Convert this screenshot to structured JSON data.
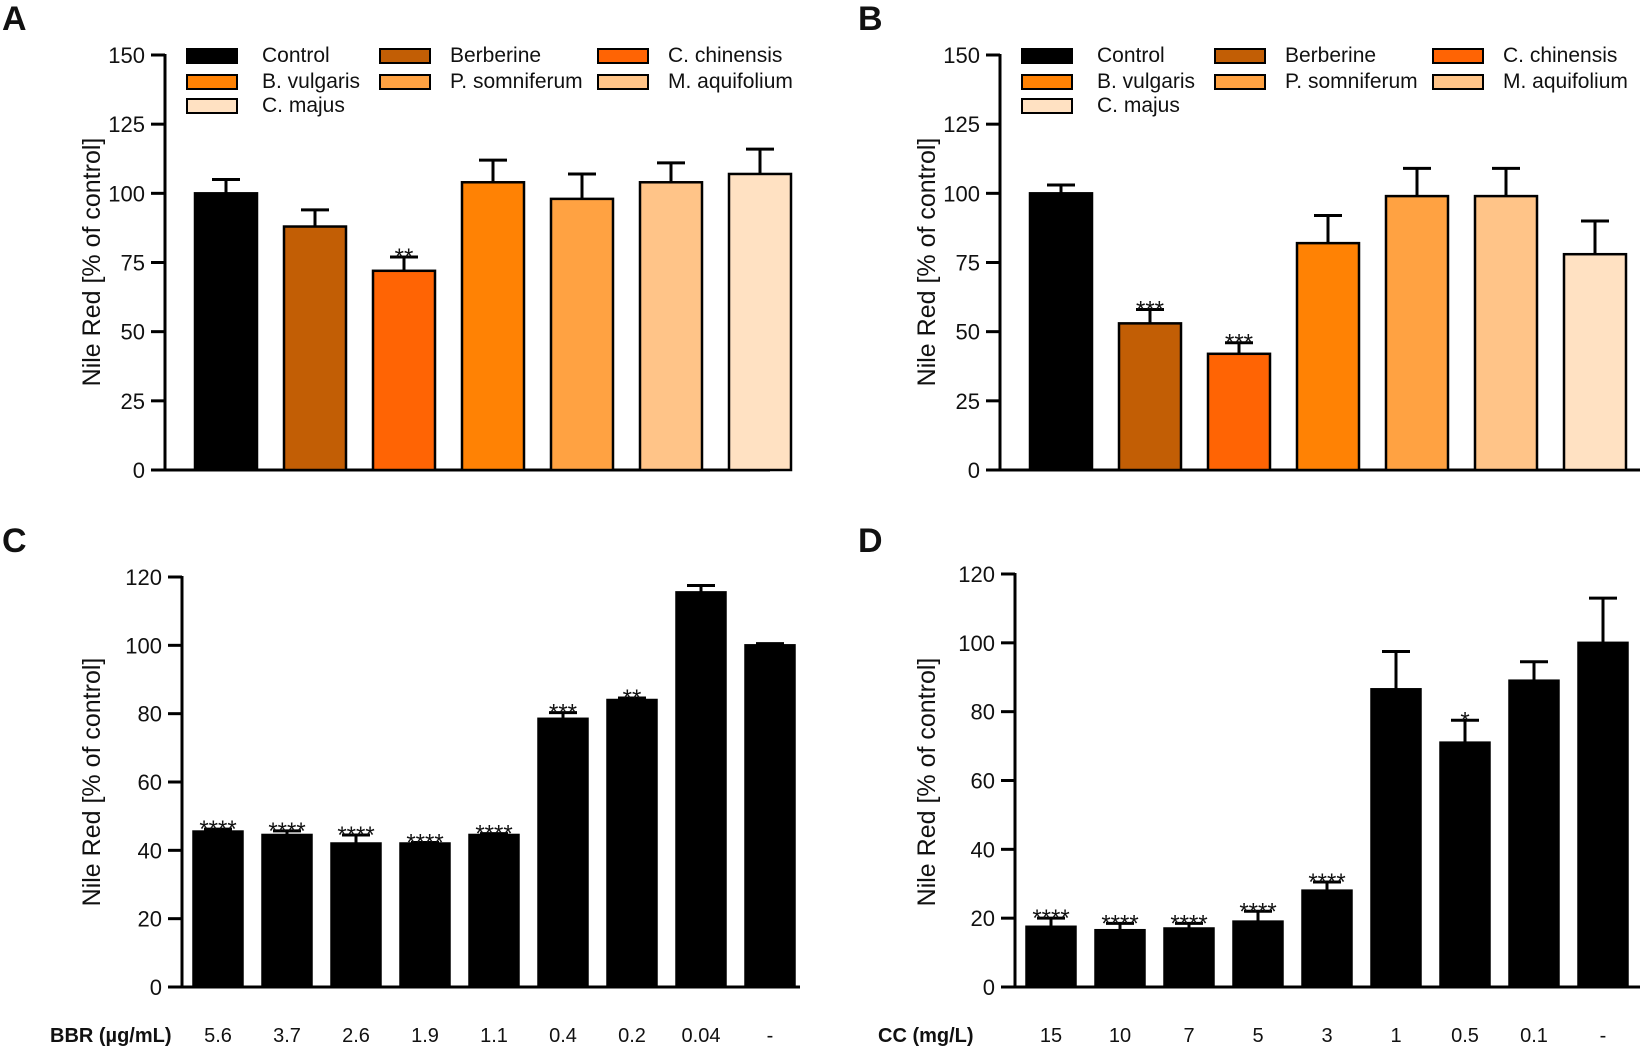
{
  "chart_data": [
    {
      "panel": "A",
      "type": "bar",
      "ylabel": "Nile Red [% of control]",
      "ylim": [
        0,
        150
      ],
      "yticks": [
        0,
        25,
        50,
        75,
        100,
        125,
        150
      ],
      "xlabel": "",
      "categories": [
        "Control",
        "Berberine",
        "C. chinensis",
        "B. vulgaris",
        "P. somniferum",
        "M. aquifolium",
        "C. majus"
      ],
      "values": [
        100,
        88,
        72,
        104,
        98,
        104,
        107
      ],
      "errors": [
        5,
        6,
        5,
        8,
        9,
        7,
        9
      ],
      "significance": [
        "",
        "",
        "**",
        "",
        "",
        "",
        ""
      ],
      "colors": [
        "#000000",
        "#c25e05",
        "#ff6404",
        "#ff8204",
        "#ffa242",
        "#ffc488",
        "#ffe1c2"
      ],
      "legend": [
        "Control",
        "Berberine",
        "C. chinensis",
        "B. vulgaris",
        "P. somniferum",
        "M. aquifolium",
        "C. majus"
      ]
    },
    {
      "panel": "B",
      "type": "bar",
      "ylabel": "Nile Red [% of control]",
      "ylim": [
        0,
        150
      ],
      "yticks": [
        0,
        25,
        50,
        75,
        100,
        125,
        150
      ],
      "xlabel": "",
      "categories": [
        "Control",
        "Berberine",
        "C. chinensis",
        "B. vulgaris",
        "P. somniferum",
        "M. aquifolium",
        "C. majus"
      ],
      "values": [
        100,
        53,
        42,
        82,
        99,
        99,
        78
      ],
      "errors": [
        3,
        5,
        4,
        10,
        10,
        10,
        12
      ],
      "significance": [
        "",
        "***",
        "***",
        "",
        "",
        "",
        ""
      ],
      "colors": [
        "#000000",
        "#c25e05",
        "#ff6404",
        "#ff8204",
        "#ffa242",
        "#ffc488",
        "#ffe1c2"
      ],
      "legend": [
        "Control",
        "Berberine",
        "C. chinensis",
        "B. vulgaris",
        "P. somniferum",
        "M. aquifolium",
        "C. majus"
      ]
    },
    {
      "panel": "C",
      "type": "bar",
      "ylabel": "Nile Red [% of control]",
      "ylim": [
        0,
        120
      ],
      "yticks": [
        0,
        20,
        40,
        60,
        80,
        100,
        120
      ],
      "xlabel": "BBR (µg/mL)",
      "categories": [
        "5.6",
        "3.7",
        "2.6",
        "1.9",
        "1.1",
        "0.4",
        "0.2",
        "0.04",
        "-"
      ],
      "values": [
        45.5,
        44.5,
        42,
        42,
        44.5,
        78.5,
        84,
        115.5,
        100
      ],
      "errors": [
        0.7,
        1.2,
        2.5,
        0.3,
        0.4,
        1.8,
        0.6,
        2,
        0.5
      ],
      "significance": [
        "****",
        "****",
        "****",
        "****",
        "****",
        "***",
        "**",
        "",
        ""
      ],
      "colors": [
        "#000000"
      ]
    },
    {
      "panel": "D",
      "type": "bar",
      "ylabel": "Nile Red [% of control]",
      "ylim": [
        0,
        120
      ],
      "yticks": [
        0,
        20,
        40,
        60,
        80,
        100,
        120
      ],
      "xlabel": "CC (mg/L)",
      "categories": [
        "15",
        "10",
        "7",
        "5",
        "3",
        "1",
        "0.5",
        "0.1",
        "-"
      ],
      "values": [
        17.5,
        16.5,
        17,
        19,
        28,
        86.5,
        71,
        89,
        100
      ],
      "errors": [
        2.5,
        2,
        1.5,
        3,
        2.5,
        11,
        6.5,
        5.5,
        13
      ],
      "significance": [
        "****",
        "****",
        "****",
        "****",
        "****",
        "",
        "*",
        "",
        ""
      ],
      "colors": [
        "#000000"
      ]
    }
  ]
}
